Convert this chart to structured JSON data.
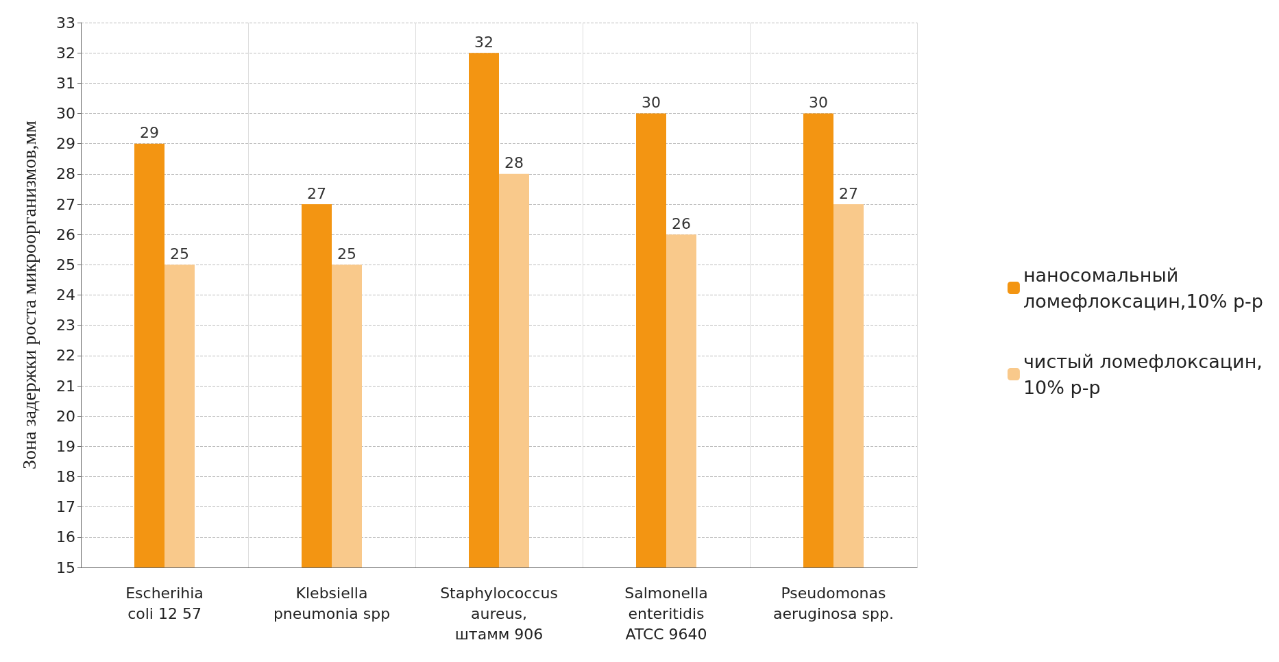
{
  "chart_data": {
    "type": "bar",
    "ylabel": "Зона задержки роста микроорганизмов,мм",
    "categories": [
      "Escherihia\ncoli 12 57",
      "Klebsiella\npneumonia spp",
      "Staphylococcus\naureus,\nштамм 906",
      "Salmonella\nenteritidis\nATCC 9640",
      "Pseudomonas\naeruginosa spp."
    ],
    "series": [
      {
        "name": "наносомальный\nломефлоксацин,10% р-р",
        "color": "#f39512",
        "values": [
          29,
          27,
          32,
          30,
          30
        ]
      },
      {
        "name": "чистый ломефлоксацин,\n10% р-р",
        "color": "#f9c98b",
        "values": [
          25,
          25,
          28,
          26,
          27
        ]
      }
    ],
    "ylim": [
      15,
      33
    ],
    "yticks": [
      15,
      16,
      17,
      18,
      19,
      20,
      21,
      22,
      23,
      24,
      25,
      26,
      27,
      28,
      29,
      30,
      31,
      32,
      33
    ],
    "grid": true,
    "legend": "right",
    "data_labels": true
  }
}
